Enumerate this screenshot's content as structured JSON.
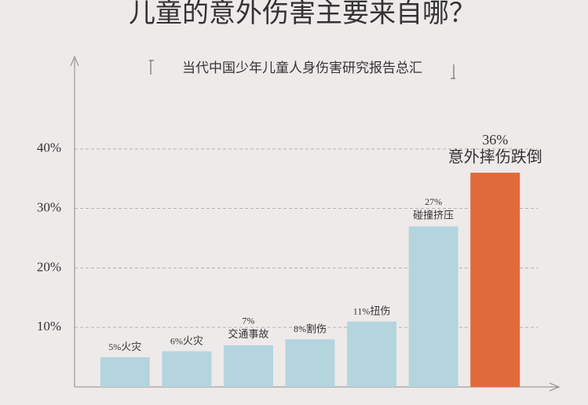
{
  "chart_data": {
    "type": "bar",
    "title": "儿童的意外伤害主要来自哪？",
    "subtitle": "当代中国少年儿童人身伤害研究报告总汇",
    "categories": [
      "火灾",
      "火灾",
      "交通事故",
      "割伤",
      "扭伤",
      "碰撞挤压",
      "意外摔伤跌倒"
    ],
    "values": [
      5,
      6,
      7,
      8,
      11,
      27,
      36
    ],
    "value_labels": [
      "5%",
      "6%",
      "7%",
      "8%",
      "11%",
      "27%",
      "36%"
    ],
    "colors": [
      "#b5d5de",
      "#b5d5de",
      "#b5d5de",
      "#b5d5de",
      "#b5d5de",
      "#b5d5de",
      "#e06a3a"
    ],
    "ylim": [
      0,
      55
    ],
    "yticks": [
      {
        "value": 10,
        "label": "10%"
      },
      {
        "value": 20,
        "label": "20%"
      },
      {
        "value": 30,
        "label": "30%"
      },
      {
        "value": 40,
        "label": "40%"
      }
    ],
    "grid": true
  }
}
